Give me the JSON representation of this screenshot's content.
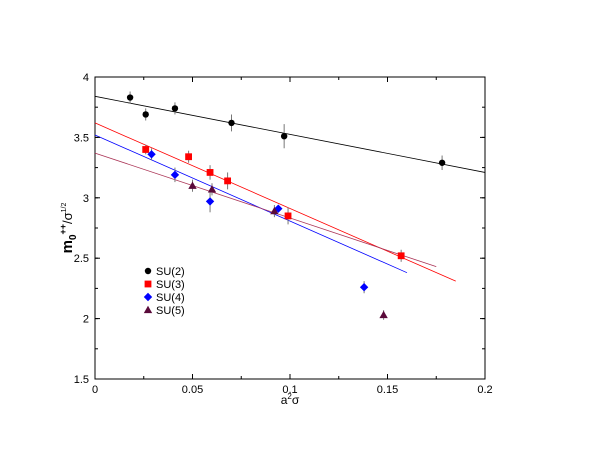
{
  "chart_data": {
    "type": "scatter",
    "xlabel": {
      "base": "a",
      "sup": "2",
      "tail": "σ"
    },
    "ylabel": {
      "base": "m",
      "sub": "0",
      "sup": "++",
      "tail": "/σ",
      "tail_sup": "1/2"
    },
    "xlim": [
      0,
      0.2
    ],
    "ylim": [
      1.5,
      4
    ],
    "xticks": [
      0,
      0.05,
      0.1,
      0.15,
      0.2
    ],
    "xtick_labels": [
      "0",
      "0.05",
      "0.1",
      "0.15",
      "0.2"
    ],
    "yticks": [
      1.5,
      2,
      2.5,
      3,
      3.5,
      4
    ],
    "ytick_labels": [
      "1.5",
      "2",
      "2.5",
      "3",
      "3.5",
      "4"
    ],
    "grid": false,
    "legend_position": "lower-left",
    "series": [
      {
        "name": "SU(2)",
        "marker": "circle",
        "color": "#000000",
        "points": [
          {
            "x": 0.018,
            "y": 3.83,
            "err": 0.05
          },
          {
            "x": 0.026,
            "y": 3.69,
            "err": 0.05
          },
          {
            "x": 0.041,
            "y": 3.74,
            "err": 0.05
          },
          {
            "x": 0.07,
            "y": 3.62,
            "err": 0.07
          },
          {
            "x": 0.097,
            "y": 3.51,
            "err": 0.1
          },
          {
            "x": 0.178,
            "y": 3.29,
            "err": 0.06
          }
        ]
      },
      {
        "name": "SU(3)",
        "marker": "square",
        "color": "#ff0000",
        "points": [
          {
            "x": 0.026,
            "y": 3.4,
            "err": 0.04
          },
          {
            "x": 0.048,
            "y": 3.34,
            "err": 0.05
          },
          {
            "x": 0.059,
            "y": 3.21,
            "err": 0.06
          },
          {
            "x": 0.068,
            "y": 3.14,
            "err": 0.07
          },
          {
            "x": 0.099,
            "y": 2.85,
            "err": 0.07
          },
          {
            "x": 0.157,
            "y": 2.52,
            "err": 0.05
          }
        ]
      },
      {
        "name": "SU(4)",
        "marker": "diamond",
        "color": "#0000ff",
        "points": [
          {
            "x": 0.029,
            "y": 3.36,
            "err": 0.05
          },
          {
            "x": 0.041,
            "y": 3.19,
            "err": 0.06
          },
          {
            "x": 0.059,
            "y": 2.97,
            "err": 0.09
          },
          {
            "x": 0.094,
            "y": 2.91,
            "err": 0.03
          },
          {
            "x": 0.138,
            "y": 2.26,
            "err": 0.05
          }
        ]
      },
      {
        "name": "SU(5)",
        "marker": "triangle",
        "color": "#5a0a3a",
        "points": [
          {
            "x": 0.05,
            "y": 3.1,
            "err": 0.05
          },
          {
            "x": 0.06,
            "y": 3.07,
            "err": 0.05
          },
          {
            "x": 0.092,
            "y": 2.89,
            "err": 0.05
          },
          {
            "x": 0.148,
            "y": 2.03,
            "err": 0.04
          }
        ]
      }
    ],
    "fits": [
      {
        "series": "SU(2)",
        "color": "#000000",
        "x0": 0,
        "y0": 3.84,
        "x1": 0.2,
        "y1": 3.21
      },
      {
        "series": "SU(3)",
        "color": "#ff0000",
        "x0": 0,
        "y0": 3.62,
        "x1": 0.185,
        "y1": 2.31
      },
      {
        "series": "SU(4)",
        "color": "#0000ff",
        "x0": 0,
        "y0": 3.52,
        "x1": 0.16,
        "y1": 2.38
      },
      {
        "series": "SU(5)",
        "color": "#aa3355",
        "x0": 0,
        "y0": 3.37,
        "x1": 0.175,
        "y1": 2.43
      }
    ]
  }
}
